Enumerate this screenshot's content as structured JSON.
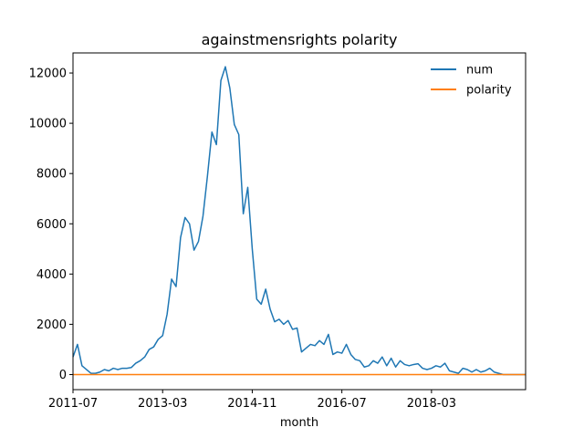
{
  "chart_data": {
    "type": "line",
    "title": "againstmensrights polarity",
    "xlabel": "month",
    "ylabel": "",
    "xlim": [
      "2011-07",
      "2019-12"
    ],
    "ylim": [
      -600,
      12800
    ],
    "x_ticks": [
      "2011-07",
      "2013-03",
      "2014-11",
      "2016-07",
      "2018-03"
    ],
    "y_ticks": [
      0,
      2000,
      4000,
      6000,
      8000,
      10000,
      12000
    ],
    "legend_position": "top-right",
    "grid": false,
    "x": [
      "2011-07",
      "2011-08",
      "2011-09",
      "2011-10",
      "2011-11",
      "2011-12",
      "2012-01",
      "2012-02",
      "2012-03",
      "2012-04",
      "2012-05",
      "2012-06",
      "2012-07",
      "2012-08",
      "2012-09",
      "2012-10",
      "2012-11",
      "2012-12",
      "2013-01",
      "2013-02",
      "2013-03",
      "2013-04",
      "2013-05",
      "2013-06",
      "2013-07",
      "2013-08",
      "2013-09",
      "2013-10",
      "2013-11",
      "2013-12",
      "2014-01",
      "2014-02",
      "2014-03",
      "2014-04",
      "2014-05",
      "2014-06",
      "2014-07",
      "2014-08",
      "2014-09",
      "2014-10",
      "2014-11",
      "2014-12",
      "2015-01",
      "2015-02",
      "2015-03",
      "2015-04",
      "2015-05",
      "2015-06",
      "2015-07",
      "2015-08",
      "2015-09",
      "2015-10",
      "2015-11",
      "2015-12",
      "2016-01",
      "2016-02",
      "2016-03",
      "2016-04",
      "2016-05",
      "2016-06",
      "2016-07",
      "2016-08",
      "2016-09",
      "2016-10",
      "2016-11",
      "2016-12",
      "2017-01",
      "2017-02",
      "2017-03",
      "2017-04",
      "2017-05",
      "2017-06",
      "2017-07",
      "2017-08",
      "2017-09",
      "2017-10",
      "2017-11",
      "2017-12",
      "2018-01",
      "2018-02",
      "2018-03",
      "2018-04",
      "2018-05",
      "2018-06",
      "2018-07",
      "2018-08",
      "2018-09",
      "2018-10",
      "2018-11",
      "2018-12",
      "2019-01",
      "2019-02",
      "2019-03",
      "2019-04",
      "2019-05",
      "2019-06",
      "2019-07",
      "2019-08",
      "2019-09",
      "2019-10",
      "2019-11",
      "2019-12"
    ],
    "series": [
      {
        "name": "num",
        "color": "#1f77b4",
        "values": [
          700,
          1200,
          350,
          200,
          50,
          50,
          100,
          200,
          150,
          250,
          200,
          250,
          250,
          280,
          450,
          550,
          700,
          1000,
          1100,
          1400,
          1550,
          2400,
          3800,
          3500,
          5450,
          6250,
          6000,
          4950,
          5300,
          6300,
          7900,
          9650,
          9150,
          11700,
          12250,
          11400,
          9950,
          9550,
          6400,
          7450,
          5000,
          3000,
          2800,
          3400,
          2600,
          2100,
          2200,
          2000,
          2150,
          1800,
          1850,
          900,
          1050,
          1200,
          1150,
          1350,
          1200,
          1600,
          800,
          900,
          850,
          1200,
          800,
          600,
          550,
          300,
          350,
          550,
          450,
          700,
          350,
          650,
          300,
          550,
          400,
          350,
          400,
          430,
          250,
          200,
          250,
          350,
          300,
          450,
          150,
          100,
          50,
          250,
          200,
          100,
          200,
          100,
          150,
          250,
          100,
          50,
          0,
          0,
          0,
          0,
          0,
          0
        ]
      },
      {
        "name": "polarity",
        "color": "#ff7f0e",
        "values": [
          0,
          0,
          0,
          0,
          0,
          0,
          0,
          0,
          0,
          0,
          0,
          0,
          0,
          0,
          0,
          0,
          0,
          0,
          0,
          0,
          0,
          0,
          0,
          0,
          0,
          0,
          0,
          0,
          0,
          0,
          0,
          0,
          0,
          0,
          0,
          0,
          0,
          0,
          0,
          0,
          0,
          0,
          0,
          0,
          0,
          0,
          0,
          0,
          0,
          0,
          0,
          0,
          0,
          0,
          0,
          0,
          0,
          0,
          0,
          0,
          0,
          0,
          0,
          0,
          0,
          0,
          0,
          0,
          0,
          0,
          0,
          0,
          0,
          0,
          0,
          0,
          0,
          0,
          0,
          0,
          0,
          0,
          0,
          0,
          0,
          0,
          0,
          0,
          0,
          0,
          0,
          0,
          0,
          0,
          0,
          0,
          0,
          0,
          0,
          0,
          0,
          0
        ]
      }
    ]
  }
}
